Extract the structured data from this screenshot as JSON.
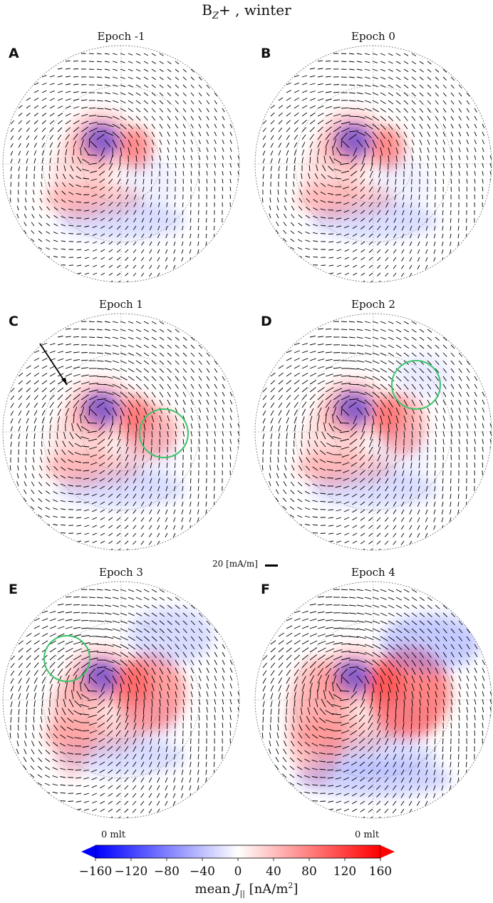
{
  "title": "B₂+ , winter",
  "title_sub": "Z",
  "panels": [
    {
      "letter": "A",
      "title": "Epoch -1"
    },
    {
      "letter": "B",
      "title": "Epoch 0"
    },
    {
      "letter": "C",
      "title": "Epoch 1"
    },
    {
      "letter": "D",
      "title": "Epoch 2"
    },
    {
      "letter": "E",
      "title": "Epoch 3"
    },
    {
      "letter": "F",
      "title": "Epoch 4"
    }
  ],
  "scale_label": "20 [mA/m]",
  "mlt_labels": [
    "0 mlt",
    "0 mlt"
  ],
  "colorbar": {
    "label": "mean J|| [nA/m²]",
    "ticks": [
      "−160",
      "−120",
      "−80",
      "−40",
      "0",
      "40",
      "80",
      "120",
      "160"
    ],
    "min_color": "#0000ff",
    "mid_color": "#ffffff",
    "max_color": "#ff0000"
  }
}
